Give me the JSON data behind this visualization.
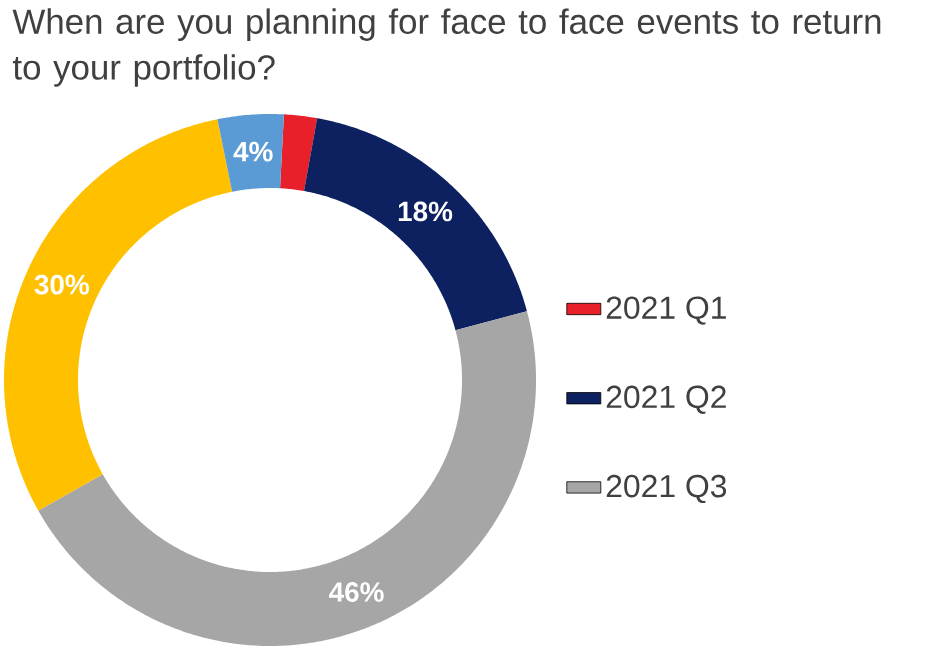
{
  "chart_data": {
    "type": "donut",
    "title": "When are you planning for face to face events to return to your portfolio?",
    "categories": [
      "2021 Q1",
      "2021 Q2",
      "2021 Q3",
      null,
      null
    ],
    "values": [
      2,
      18,
      46,
      30,
      4
    ],
    "colors": [
      "#e8202a",
      "#0d2160",
      "#a6a6a6",
      "#ffc000",
      "#5b9bd5"
    ],
    "value_labels": [
      null,
      "18%",
      "46%",
      "30%",
      "4%"
    ],
    "legend": "right"
  }
}
